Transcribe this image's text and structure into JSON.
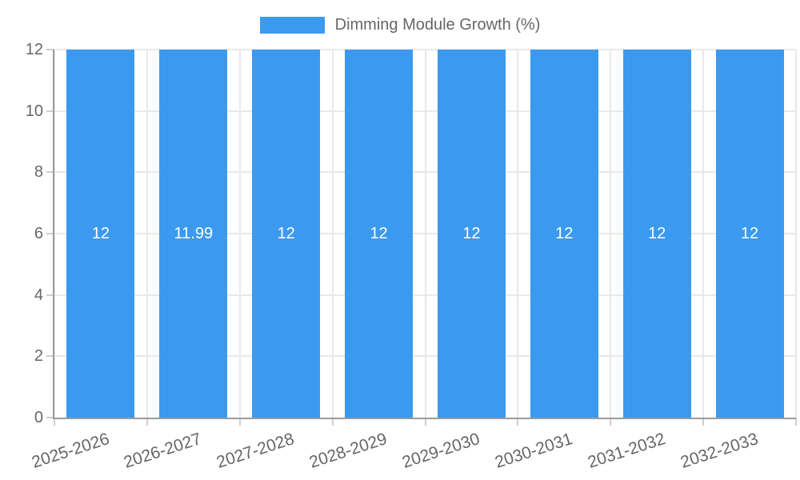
{
  "chart_data": {
    "type": "bar",
    "title": "Dimming Module Growth (%)",
    "categories": [
      "2025-2026",
      "2026-2027",
      "2027-2028",
      "2028-2029",
      "2029-2030",
      "2030-2031",
      "2031-2032",
      "2032-2033"
    ],
    "series": [
      {
        "name": "Dimming Module Growth (%)",
        "values": [
          12,
          11.99,
          12,
          12,
          12,
          12,
          12,
          12
        ],
        "value_labels": [
          "12",
          "11.99",
          "12",
          "12",
          "12",
          "12",
          "12",
          "12"
        ]
      }
    ],
    "xlabel": "",
    "ylabel": "",
    "ylim": [
      0,
      12
    ],
    "yticks": [
      0,
      2,
      4,
      6,
      8,
      10,
      12
    ],
    "grid": true,
    "legend_position": "top",
    "x_tick_rotation_deg": -18,
    "colors": {
      "bar": "#3b9af0",
      "axis_text": "#666666",
      "value_label_text": "#ffffff",
      "gridline": "#e9e9e9",
      "tick_mark": "#cfcfcf",
      "axis_line": "#9b9b9b",
      "background": "#ffffff"
    }
  }
}
